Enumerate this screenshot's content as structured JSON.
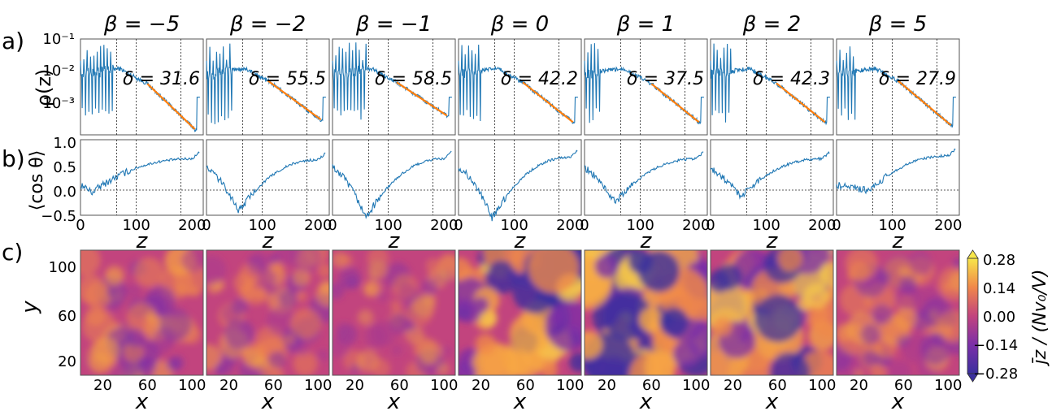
{
  "colors": {
    "line": "#1f77b4",
    "fit": "#ff7f0e",
    "frame": "#555555",
    "guide": "#222222"
  },
  "row_labels": {
    "a": "a)",
    "b": "b)",
    "c": "c)"
  },
  "columns": [
    {
      "beta": "β = −5",
      "delta": "δ = 31.6"
    },
    {
      "beta": "β = −2",
      "delta": "δ = 55.5"
    },
    {
      "beta": "β = −1",
      "delta": "δ = 58.5"
    },
    {
      "beta": "β = 0",
      "delta": "δ = 42.2"
    },
    {
      "beta": "β = 1",
      "delta": "δ = 37.5"
    },
    {
      "beta": "β = 2",
      "delta": "δ = 42.3"
    },
    {
      "beta": "β = 5",
      "delta": "δ = 27.9"
    }
  ],
  "chart_data": [
    {
      "type": "line",
      "panel": "a",
      "ylabel": "ρ(z)",
      "yscale": "log",
      "ylim": [
        0.0001,
        0.1
      ],
      "xlim": [
        0,
        220
      ],
      "yticks": [
        "10⁻¹",
        "10⁻²",
        "10⁻³"
      ],
      "vlines": [
        65,
        100,
        180
      ],
      "fit_range": [
        100,
        200
      ],
      "series_shape": {
        "spike_end": [
          60,
          48,
          62,
          40,
          30,
          38,
          35
        ],
        "fit_start": [
          120,
          110,
          115,
          115,
          120,
          118,
          110
        ],
        "end_value": [
          0.00015,
          0.0003,
          0.0004,
          0.00025,
          0.00025,
          0.00025,
          0.0002
        ]
      }
    },
    {
      "type": "line",
      "panel": "b",
      "ylabel": "⟨cos θ⟩",
      "xlabel": "z",
      "ylim": [
        -0.5,
        1.0
      ],
      "xlim": [
        0,
        220
      ],
      "yticks": [
        "1.0",
        "0.5",
        "0.0",
        "−0.5"
      ],
      "xticks": [
        "0",
        "100",
        "200"
      ],
      "vlines": [
        65,
        100,
        180
      ],
      "hline": 0,
      "minima": [
        {
          "z": 20,
          "value": -0.05
        },
        {
          "z": 58,
          "value": -0.42
        },
        {
          "z": 60,
          "value": -0.55
        },
        {
          "z": 60,
          "value": -0.55
        },
        {
          "z": 55,
          "value": -0.25
        },
        {
          "z": 55,
          "value": -0.12
        },
        {
          "z": 60,
          "value": -0.02
        }
      ],
      "plateau": [
        0.62,
        0.6,
        0.62,
        0.65,
        0.62,
        0.62,
        0.68
      ]
    },
    {
      "type": "heatmap",
      "panel": "c",
      "xlabel": "x",
      "ylabel": "y",
      "xticks": [
        "20",
        "60",
        "100"
      ],
      "yticks": [
        "100",
        "60",
        "20"
      ],
      "xlim": [
        0,
        110
      ],
      "ylim": [
        0,
        110
      ],
      "colorbar": {
        "label": "j̄z / (Nv₀/V)",
        "ticks": [
          "0.28",
          "0.14",
          "0.00",
          "−0.14",
          "−0.28"
        ],
        "range": [
          -0.28,
          0.28
        ]
      },
      "amplitude": [
        0.35,
        0.3,
        0.12,
        0.95,
        1.0,
        0.85,
        0.35
      ]
    }
  ]
}
